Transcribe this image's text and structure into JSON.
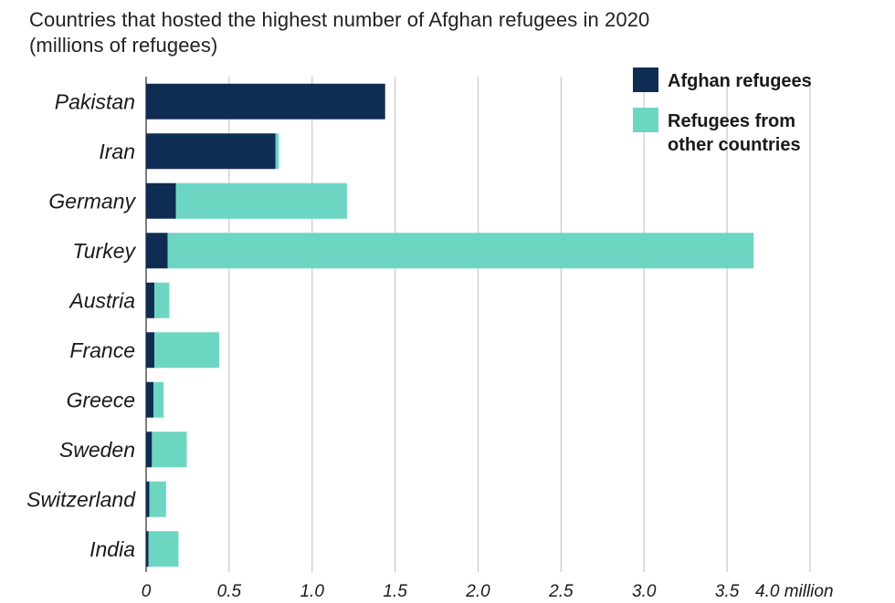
{
  "chart_data": {
    "type": "bar",
    "orientation": "horizontal",
    "stacked": true,
    "title": "Countries that hosted the highest number of Afghan refugees in 2020",
    "subtitle": "(millions of refugees)",
    "xlim": [
      0,
      4.0
    ],
    "ticks": [
      {
        "value": 0,
        "label": "0"
      },
      {
        "value": 0.5,
        "label": "0.5"
      },
      {
        "value": 1.0,
        "label": "1.0"
      },
      {
        "value": 1.5,
        "label": "1.5"
      },
      {
        "value": 2.0,
        "label": "2.0"
      },
      {
        "value": 2.5,
        "label": "2.5"
      },
      {
        "value": 3.0,
        "label": "3.0"
      },
      {
        "value": 3.5,
        "label": "3.5"
      },
      {
        "value": 4.0,
        "label": "4.0 million"
      }
    ],
    "grid": true,
    "legend_position": "top-right",
    "categories": [
      "Pakistan",
      "Iran",
      "Germany",
      "Turkey",
      "Austria",
      "France",
      "Greece",
      "Sweden",
      "Switzerland",
      "India"
    ],
    "series": [
      {
        "name": "Afghan refugees",
        "color": "#0f2d52",
        "values": [
          1.44,
          0.78,
          0.18,
          0.13,
          0.05,
          0.05,
          0.045,
          0.035,
          0.02,
          0.015
        ]
      },
      {
        "name": "Refugees from other countries",
        "color": "#6dd6c2",
        "values": [
          0.0,
          0.02,
          1.03,
          3.53,
          0.09,
          0.39,
          0.06,
          0.21,
          0.1,
          0.18
        ]
      }
    ]
  }
}
